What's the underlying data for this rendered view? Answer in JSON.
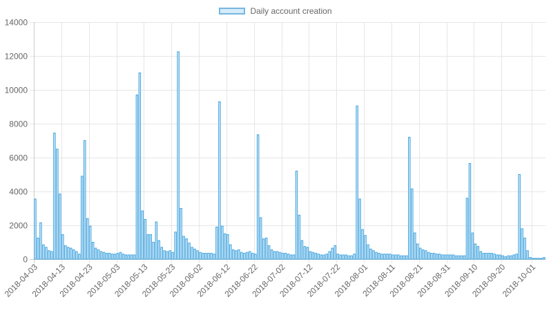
{
  "chart_data": {
    "type": "bar",
    "series": [
      {
        "name": "Daily account creation",
        "x_start": "2018-04-03",
        "values": [
          3550,
          1250,
          2150,
          850,
          700,
          500,
          450,
          7450,
          6500,
          3850,
          1450,
          800,
          700,
          650,
          550,
          450,
          300,
          4900,
          7000,
          2400,
          1950,
          1000,
          650,
          550,
          450,
          400,
          350,
          350,
          300,
          300,
          350,
          400,
          300,
          250,
          250,
          250,
          250,
          9700,
          11000,
          2850,
          2350,
          1450,
          1450,
          1000,
          2200,
          1100,
          700,
          500,
          450,
          500,
          400,
          1600,
          12250,
          3000,
          1350,
          1200,
          950,
          700,
          600,
          500,
          400,
          350,
          350,
          350,
          350,
          300,
          1900,
          9300,
          1950,
          1500,
          1450,
          850,
          550,
          500,
          550,
          400,
          350,
          400,
          450,
          350,
          300,
          7350,
          2450,
          1200,
          1250,
          800,
          550,
          450,
          450,
          400,
          350,
          350,
          300,
          250,
          250,
          5200,
          2600,
          1100,
          750,
          700,
          450,
          400,
          350,
          300,
          250,
          250,
          300,
          450,
          650,
          800,
          300,
          250,
          250,
          250,
          200,
          200,
          300,
          9050,
          3550,
          1750,
          1400,
          850,
          600,
          500,
          400,
          350,
          300,
          300,
          300,
          300,
          250,
          250,
          250,
          200,
          200,
          200,
          7200,
          4150,
          1550,
          900,
          650,
          550,
          500,
          400,
          350,
          350,
          300,
          300,
          250,
          250,
          250,
          250,
          250,
          200,
          200,
          200,
          200,
          3600,
          5650,
          1550,
          900,
          750,
          450,
          350,
          350,
          350,
          350,
          300,
          250,
          250,
          200,
          150,
          200,
          200,
          250,
          300,
          5000,
          1800,
          1250,
          500,
          100,
          50,
          50,
          50,
          50,
          100
        ]
      }
    ],
    "x_ticks": [
      "2018-04-03",
      "2018-04-13",
      "2018-04-23",
      "2018-05-03",
      "2018-05-13",
      "2018-05-23",
      "2018-06-02",
      "2018-06-12",
      "2018-06-22",
      "2018-07-02",
      "2018-07-12",
      "2018-07-22",
      "2018-08-01",
      "2018-08-11",
      "2018-08-21",
      "2018-08-31",
      "2018-09-10",
      "2018-09-20",
      "2018-10-01"
    ],
    "y_ticks": [
      "0",
      "2000",
      "4000",
      "6000",
      "8000",
      "10000",
      "12000",
      "14000"
    ],
    "ylim": [
      0,
      14000
    ],
    "legend": "top",
    "grid": true,
    "colors": {
      "bar_fill": "#d4e9f8",
      "bar_stroke": "#3ea3de",
      "grid": "#e6e6e6",
      "axis": "#cccccc"
    }
  }
}
